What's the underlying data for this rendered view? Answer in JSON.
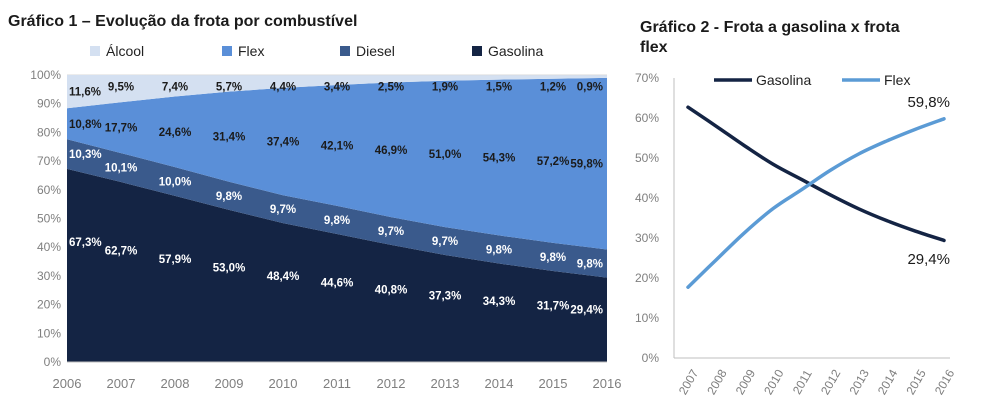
{
  "titles": {
    "chart1": "Gráfico 1 – Evolução da frota por combustível",
    "chart2": "Gráfico 2 - Frota a gasolina x frota flex"
  },
  "colors": {
    "alcool": "#d4e0f1",
    "flex": "#5a8fd8",
    "diesel": "#3a5a8c",
    "gasolina": "#142444",
    "line_gasolina": "#142444",
    "line_flex": "#5b9bd5"
  },
  "chart_data": [
    {
      "type": "area",
      "stacked": true,
      "x": [
        "2006",
        "2007",
        "2008",
        "2009",
        "2010",
        "2011",
        "2012",
        "2013",
        "2014",
        "2015",
        "2016"
      ],
      "ylim": [
        0,
        100
      ],
      "y_ticks": [
        "0%",
        "10%",
        "20%",
        "30%",
        "40%",
        "50%",
        "60%",
        "70%",
        "80%",
        "90%",
        "100%"
      ],
      "series": [
        {
          "name": "Gasolina",
          "values": [
            67.3,
            62.7,
            57.9,
            53.0,
            48.4,
            44.6,
            40.8,
            37.3,
            34.3,
            31.7,
            29.4
          ],
          "labels": [
            "67,3%",
            "62,7%",
            "57,9%",
            "53,0%",
            "48,4%",
            "44,6%",
            "40,8%",
            "37,3%",
            "34,3%",
            "31,7%",
            "29,4%"
          ]
        },
        {
          "name": "Diesel",
          "values": [
            10.3,
            10.1,
            10.0,
            9.8,
            9.7,
            9.8,
            9.7,
            9.7,
            9.8,
            9.8,
            9.8
          ],
          "labels": [
            "10,3%",
            "10,1%",
            "10,0%",
            "9,8%",
            "9,7%",
            "9,8%",
            "9,7%",
            "9,7%",
            "9,8%",
            "9,8%",
            "9,8%"
          ]
        },
        {
          "name": "Flex",
          "values": [
            10.8,
            17.7,
            24.6,
            31.4,
            37.4,
            42.1,
            46.9,
            51.0,
            54.3,
            57.2,
            59.8
          ],
          "labels": [
            "10,8%",
            "17,7%",
            "24,6%",
            "31,4%",
            "37,4%",
            "42,1%",
            "46,9%",
            "51,0%",
            "54,3%",
            "57,2%",
            "59,8%"
          ]
        },
        {
          "name": "Álcool",
          "values": [
            11.6,
            9.5,
            7.4,
            5.7,
            4.4,
            3.4,
            2.5,
            1.9,
            1.5,
            1.2,
            0.9
          ],
          "labels": [
            "11,6%",
            "9,5%",
            "7,4%",
            "5,7%",
            "4,4%",
            "3,4%",
            "2,5%",
            "1,9%",
            "1,5%",
            "1,2%",
            "0,9%"
          ]
        }
      ],
      "legend": [
        "Álcool",
        "Flex",
        "Diesel",
        "Gasolina"
      ],
      "legend_position": "top"
    },
    {
      "type": "line",
      "x": [
        "2007",
        "2008",
        "2009",
        "2010",
        "2011",
        "2012",
        "2013",
        "2014",
        "2015",
        "2016"
      ],
      "ylim": [
        0,
        70
      ],
      "y_ticks": [
        "0%",
        "10%",
        "20%",
        "30%",
        "40%",
        "50%",
        "60%",
        "70%"
      ],
      "series": [
        {
          "name": "Gasolina",
          "values": [
            62.7,
            57.9,
            53.0,
            48.4,
            44.6,
            40.8,
            37.3,
            34.3,
            31.7,
            29.4
          ]
        },
        {
          "name": "Flex",
          "values": [
            17.7,
            24.6,
            31.4,
            37.4,
            42.1,
            46.9,
            51.0,
            54.3,
            57.2,
            59.8
          ]
        }
      ],
      "annotations": [
        "59,8%",
        "29,4%"
      ],
      "legend_position": "top"
    }
  ]
}
